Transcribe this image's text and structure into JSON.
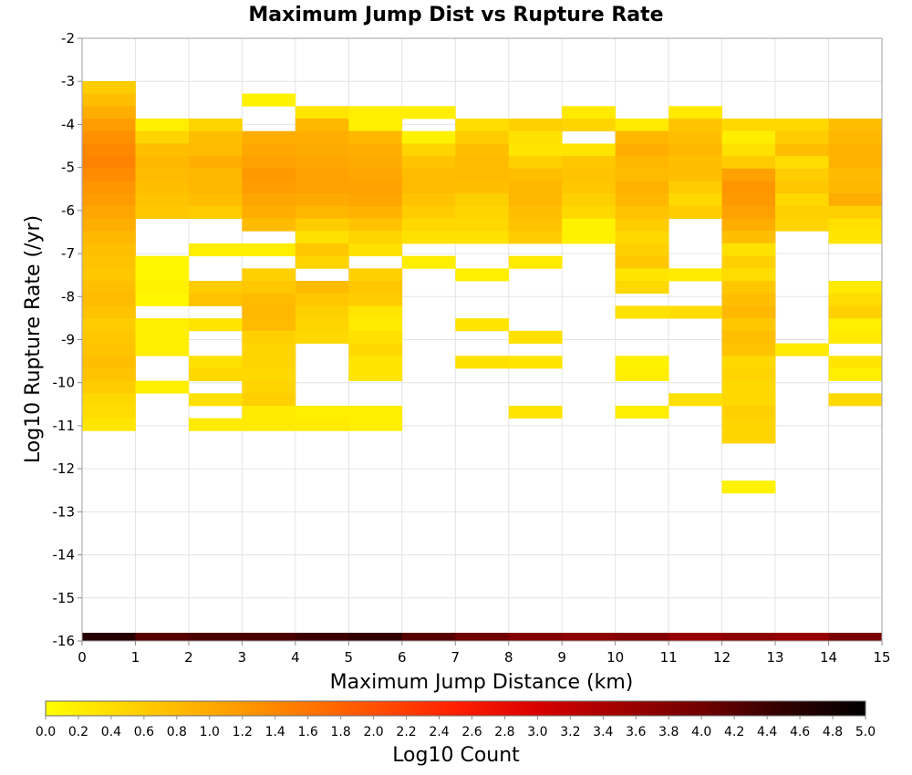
{
  "chart_data": {
    "type": "heatmap",
    "title": "Maximum Jump Dist vs Rupture Rate",
    "xlabel": "Maximum Jump Distance (km)",
    "ylabel": "Log10 Rupture Rate (/yr)",
    "xlim": [
      0,
      15
    ],
    "ylim": [
      -16,
      -2
    ],
    "x_ticks": [
      "0",
      "1",
      "2",
      "3",
      "4",
      "5",
      "6",
      "7",
      "8",
      "9",
      "10",
      "11",
      "12",
      "13",
      "14",
      "15"
    ],
    "y_ticks": [
      "-2",
      "-3",
      "-4",
      "-5",
      "-6",
      "-7",
      "-8",
      "-9",
      "-10",
      "-11",
      "-12",
      "-13",
      "-14",
      "-15",
      "-16"
    ],
    "x_bin_width": 1,
    "y_bin_height": 0.29,
    "grid": true,
    "colorbar": {
      "label": "Log10 Count",
      "range": [
        0,
        5
      ],
      "ticks": [
        "0.0",
        "0.2",
        "0.4",
        "0.6",
        "0.8",
        "1.0",
        "1.2",
        "1.4",
        "1.6",
        "1.8",
        "2.0",
        "2.2",
        "2.4",
        "2.6",
        "2.8",
        "3.0",
        "3.2",
        "3.4",
        "3.6",
        "3.8",
        "4.0",
        "4.2",
        "4.4",
        "4.6",
        "4.8",
        "5.0"
      ],
      "colors": [
        "#ffff00",
        "#ffd400",
        "#ffaa00",
        "#ff7f00",
        "#ff5000",
        "#ff2000",
        "#d80000",
        "#a00000",
        "#700000",
        "#300000",
        "#000000"
      ],
      "placement": "bottom"
    },
    "cells": [
      [
        0,
        -3.14,
        0.6
      ],
      [
        0,
        -3.43,
        0.75
      ],
      [
        0,
        -3.72,
        0.95
      ],
      [
        0,
        -4.01,
        1.15
      ],
      [
        0,
        -4.3,
        1.3
      ],
      [
        0,
        -4.59,
        1.4
      ],
      [
        0,
        -4.88,
        1.45
      ],
      [
        0,
        -5.17,
        1.35
      ],
      [
        0,
        -5.46,
        1.25
      ],
      [
        0,
        -5.75,
        1.15
      ],
      [
        0,
        -6.04,
        1.05
      ],
      [
        0,
        -6.33,
        0.95
      ],
      [
        0,
        -6.62,
        0.85
      ],
      [
        0,
        -6.91,
        0.75
      ],
      [
        0,
        -7.2,
        0.7
      ],
      [
        0,
        -7.49,
        0.65
      ],
      [
        0,
        -7.78,
        0.75
      ],
      [
        0,
        -8.07,
        0.8
      ],
      [
        0,
        -8.36,
        0.7
      ],
      [
        0,
        -8.65,
        0.6
      ],
      [
        0,
        -8.94,
        0.65
      ],
      [
        0,
        -9.23,
        0.7
      ],
      [
        0,
        -9.52,
        0.75
      ],
      [
        0,
        -9.81,
        0.7
      ],
      [
        0,
        -10.1,
        0.6
      ],
      [
        0,
        -10.39,
        0.45
      ],
      [
        0,
        -10.68,
        0.4
      ],
      [
        0,
        -10.97,
        0.3
      ],
      [
        1,
        -4.01,
        0.2
      ],
      [
        1,
        -4.3,
        0.5
      ],
      [
        1,
        -4.59,
        0.75
      ],
      [
        1,
        -4.88,
        0.85
      ],
      [
        1,
        -5.17,
        0.8
      ],
      [
        1,
        -5.46,
        0.75
      ],
      [
        1,
        -5.75,
        0.7
      ],
      [
        1,
        -6.04,
        0.65
      ],
      [
        1,
        -7.2,
        0.1
      ],
      [
        1,
        -7.49,
        0.1
      ],
      [
        1,
        -7.78,
        0.15
      ],
      [
        1,
        -8.07,
        0.1
      ],
      [
        1,
        -8.65,
        0.2
      ],
      [
        1,
        -8.94,
        0.2
      ],
      [
        1,
        -9.23,
        0.2
      ],
      [
        1,
        -10.1,
        0.2
      ],
      [
        2,
        -4.01,
        0.5
      ],
      [
        2,
        -4.3,
        0.75
      ],
      [
        2,
        -4.59,
        0.8
      ],
      [
        2,
        -4.88,
        0.95
      ],
      [
        2,
        -5.17,
        0.85
      ],
      [
        2,
        -5.46,
        0.85
      ],
      [
        2,
        -5.75,
        0.75
      ],
      [
        2,
        -6.04,
        0.6
      ],
      [
        2,
        -6.91,
        0.2
      ],
      [
        2,
        -7.78,
        0.6
      ],
      [
        2,
        -8.07,
        0.7
      ],
      [
        2,
        -8.65,
        0.3
      ],
      [
        2,
        -9.52,
        0.35
      ],
      [
        2,
        -9.81,
        0.45
      ],
      [
        2,
        -10.39,
        0.35
      ],
      [
        2,
        -10.97,
        0.25
      ],
      [
        3,
        -3.43,
        0.15
      ],
      [
        3,
        -4.3,
        0.95
      ],
      [
        3,
        -4.59,
        1.05
      ],
      [
        3,
        -4.88,
        1.1
      ],
      [
        3,
        -5.17,
        1.2
      ],
      [
        3,
        -5.46,
        1.15
      ],
      [
        3,
        -5.75,
        1.05
      ],
      [
        3,
        -6.04,
        0.95
      ],
      [
        3,
        -6.33,
        0.8
      ],
      [
        3,
        -6.91,
        0.2
      ],
      [
        3,
        -7.49,
        0.55
      ],
      [
        3,
        -7.78,
        0.65
      ],
      [
        3,
        -8.07,
        0.8
      ],
      [
        3,
        -8.36,
        0.85
      ],
      [
        3,
        -8.65,
        0.8
      ],
      [
        3,
        -8.94,
        0.55
      ],
      [
        3,
        -9.23,
        0.5
      ],
      [
        3,
        -9.52,
        0.5
      ],
      [
        3,
        -9.81,
        0.45
      ],
      [
        3,
        -10.1,
        0.5
      ],
      [
        3,
        -10.39,
        0.55
      ],
      [
        3,
        -10.68,
        0.25
      ],
      [
        3,
        -10.97,
        0.25
      ],
      [
        4,
        -3.72,
        0.3
      ],
      [
        4,
        -4.01,
        0.85
      ],
      [
        4,
        -4.3,
        0.95
      ],
      [
        4,
        -4.59,
        1.0
      ],
      [
        4,
        -4.88,
        1.05
      ],
      [
        4,
        -5.17,
        1.1
      ],
      [
        4,
        -5.46,
        1.1
      ],
      [
        4,
        -5.75,
        1.0
      ],
      [
        4,
        -6.04,
        0.85
      ],
      [
        4,
        -6.33,
        0.6
      ],
      [
        4,
        -6.62,
        0.35
      ],
      [
        4,
        -6.91,
        0.65
      ],
      [
        4,
        -7.2,
        0.5
      ],
      [
        4,
        -7.78,
        0.8
      ],
      [
        4,
        -8.07,
        0.65
      ],
      [
        4,
        -8.36,
        0.55
      ],
      [
        4,
        -8.65,
        0.5
      ],
      [
        4,
        -8.94,
        0.45
      ],
      [
        4,
        -10.68,
        0.2
      ],
      [
        4,
        -10.97,
        0.25
      ],
      [
        5,
        -3.72,
        0.2
      ],
      [
        5,
        -4.01,
        0.2
      ],
      [
        5,
        -4.3,
        0.85
      ],
      [
        5,
        -4.59,
        0.95
      ],
      [
        5,
        -4.88,
        1.0
      ],
      [
        5,
        -5.17,
        1.05
      ],
      [
        5,
        -5.46,
        1.1
      ],
      [
        5,
        -5.75,
        1.05
      ],
      [
        5,
        -6.04,
        0.9
      ],
      [
        5,
        -6.33,
        0.7
      ],
      [
        5,
        -6.62,
        0.5
      ],
      [
        5,
        -6.91,
        0.35
      ],
      [
        5,
        -7.49,
        0.55
      ],
      [
        5,
        -7.78,
        0.65
      ],
      [
        5,
        -8.07,
        0.6
      ],
      [
        5,
        -8.36,
        0.3
      ],
      [
        5,
        -8.65,
        0.25
      ],
      [
        5,
        -8.94,
        0.35
      ],
      [
        5,
        -9.23,
        0.45
      ],
      [
        5,
        -9.52,
        0.3
      ],
      [
        5,
        -9.81,
        0.3
      ],
      [
        5,
        -10.68,
        0.2
      ],
      [
        5,
        -10.97,
        0.2
      ],
      [
        6,
        -3.72,
        0.2
      ],
      [
        6,
        -4.3,
        0.15
      ],
      [
        6,
        -4.59,
        0.5
      ],
      [
        6,
        -4.88,
        0.7
      ],
      [
        6,
        -5.17,
        0.8
      ],
      [
        6,
        -5.46,
        0.8
      ],
      [
        6,
        -5.75,
        0.7
      ],
      [
        6,
        -6.04,
        0.6
      ],
      [
        6,
        -6.33,
        0.45
      ],
      [
        6,
        -6.62,
        0.35
      ],
      [
        6,
        -7.2,
        0.2
      ],
      [
        7,
        -4.01,
        0.4
      ],
      [
        7,
        -4.3,
        0.6
      ],
      [
        7,
        -4.59,
        0.75
      ],
      [
        7,
        -4.88,
        0.8
      ],
      [
        7,
        -5.17,
        0.8
      ],
      [
        7,
        -5.46,
        0.75
      ],
      [
        7,
        -5.75,
        0.55
      ],
      [
        7,
        -6.04,
        0.5
      ],
      [
        7,
        -6.33,
        0.45
      ],
      [
        7,
        -6.62,
        0.35
      ],
      [
        7,
        -7.49,
        0.2
      ],
      [
        7,
        -8.65,
        0.3
      ],
      [
        7,
        -9.52,
        0.35
      ],
      [
        8,
        -4.01,
        0.55
      ],
      [
        8,
        -4.3,
        0.35
      ],
      [
        8,
        -4.59,
        0.3
      ],
      [
        8,
        -4.88,
        0.55
      ],
      [
        8,
        -5.17,
        0.75
      ],
      [
        8,
        -5.46,
        0.85
      ],
      [
        8,
        -5.75,
        0.85
      ],
      [
        8,
        -6.04,
        0.75
      ],
      [
        8,
        -6.33,
        0.7
      ],
      [
        8,
        -6.62,
        0.6
      ],
      [
        8,
        -7.2,
        0.25
      ],
      [
        8,
        -8.94,
        0.35
      ],
      [
        8,
        -9.52,
        0.3
      ],
      [
        8,
        -10.68,
        0.3
      ],
      [
        9,
        -3.72,
        0.25
      ],
      [
        9,
        -4.01,
        0.5
      ],
      [
        9,
        -4.59,
        0.3
      ],
      [
        9,
        -4.88,
        0.65
      ],
      [
        9,
        -5.17,
        0.7
      ],
      [
        9,
        -5.46,
        0.65
      ],
      [
        9,
        -5.75,
        0.55
      ],
      [
        9,
        -6.04,
        0.45
      ],
      [
        9,
        -6.33,
        0.15
      ],
      [
        9,
        -6.62,
        0.15
      ],
      [
        10,
        -4.01,
        0.25
      ],
      [
        10,
        -4.3,
        0.85
      ],
      [
        10,
        -4.59,
        0.95
      ],
      [
        10,
        -4.88,
        0.85
      ],
      [
        10,
        -5.17,
        0.8
      ],
      [
        10,
        -5.46,
        0.9
      ],
      [
        10,
        -5.75,
        0.85
      ],
      [
        10,
        -6.04,
        0.7
      ],
      [
        10,
        -6.33,
        0.6
      ],
      [
        10,
        -6.62,
        0.45
      ],
      [
        10,
        -6.91,
        0.55
      ],
      [
        10,
        -7.2,
        0.65
      ],
      [
        10,
        -7.49,
        0.3
      ],
      [
        10,
        -7.78,
        0.45
      ],
      [
        10,
        -8.36,
        0.35
      ],
      [
        10,
        -9.52,
        0.15
      ],
      [
        10,
        -9.81,
        0.2
      ],
      [
        10,
        -10.68,
        0.2
      ],
      [
        11,
        -3.72,
        0.25
      ],
      [
        11,
        -4.01,
        0.7
      ],
      [
        11,
        -4.3,
        0.75
      ],
      [
        11,
        -4.59,
        0.85
      ],
      [
        11,
        -4.88,
        0.75
      ],
      [
        11,
        -5.17,
        0.75
      ],
      [
        11,
        -5.46,
        0.6
      ],
      [
        11,
        -5.75,
        0.45
      ],
      [
        11,
        -6.04,
        0.6
      ],
      [
        11,
        -7.49,
        0.25
      ],
      [
        11,
        -8.36,
        0.4
      ],
      [
        11,
        -10.39,
        0.35
      ],
      [
        12,
        -4.01,
        0.45
      ],
      [
        12,
        -4.3,
        0.2
      ],
      [
        12,
        -4.59,
        0.35
      ],
      [
        12,
        -4.88,
        0.6
      ],
      [
        12,
        -5.17,
        1.1
      ],
      [
        12,
        -5.46,
        1.25
      ],
      [
        12,
        -5.75,
        1.2
      ],
      [
        12,
        -6.04,
        1.1
      ],
      [
        12,
        -6.33,
        0.95
      ],
      [
        12,
        -6.62,
        0.75
      ],
      [
        12,
        -6.91,
        0.35
      ],
      [
        12,
        -7.2,
        0.55
      ],
      [
        12,
        -7.49,
        0.4
      ],
      [
        12,
        -7.78,
        0.65
      ],
      [
        12,
        -8.07,
        0.75
      ],
      [
        12,
        -8.36,
        0.85
      ],
      [
        12,
        -8.65,
        0.65
      ],
      [
        12,
        -8.94,
        0.75
      ],
      [
        12,
        -9.23,
        0.7
      ],
      [
        12,
        -9.52,
        0.45
      ],
      [
        12,
        -9.81,
        0.5
      ],
      [
        12,
        -10.1,
        0.45
      ],
      [
        12,
        -10.39,
        0.45
      ],
      [
        12,
        -10.68,
        0.55
      ],
      [
        12,
        -10.97,
        0.5
      ],
      [
        12,
        -11.26,
        0.5
      ],
      [
        12,
        -12.42,
        0.15
      ],
      [
        13,
        -4.01,
        0.45
      ],
      [
        13,
        -4.3,
        0.6
      ],
      [
        13,
        -4.59,
        0.75
      ],
      [
        13,
        -4.88,
        0.4
      ],
      [
        13,
        -5.17,
        0.6
      ],
      [
        13,
        -5.46,
        0.65
      ],
      [
        13,
        -5.75,
        0.45
      ],
      [
        13,
        -6.04,
        0.55
      ],
      [
        13,
        -6.33,
        0.5
      ],
      [
        13,
        -9.23,
        0.25
      ],
      [
        14,
        -4.01,
        0.75
      ],
      [
        14,
        -4.3,
        0.85
      ],
      [
        14,
        -4.59,
        0.9
      ],
      [
        14,
        -4.88,
        0.9
      ],
      [
        14,
        -5.17,
        0.8
      ],
      [
        14,
        -5.46,
        0.85
      ],
      [
        14,
        -5.75,
        0.95
      ],
      [
        14,
        -6.04,
        0.55
      ],
      [
        14,
        -6.33,
        0.35
      ],
      [
        14,
        -6.62,
        0.3
      ],
      [
        14,
        -7.78,
        0.25
      ],
      [
        14,
        -8.07,
        0.4
      ],
      [
        14,
        -8.36,
        0.55
      ],
      [
        14,
        -8.65,
        0.2
      ],
      [
        14,
        -8.94,
        0.25
      ],
      [
        14,
        -9.52,
        0.3
      ],
      [
        14,
        -9.81,
        0.2
      ],
      [
        14,
        -10.39,
        0.45
      ]
    ],
    "baseline_row": {
      "y": -15.9,
      "values": [
        4.6,
        4.2,
        4.3,
        4.3,
        4.4,
        4.5,
        4.2,
        4.0,
        3.8,
        3.7,
        3.8,
        3.6,
        3.7,
        3.6,
        3.9
      ]
    }
  }
}
